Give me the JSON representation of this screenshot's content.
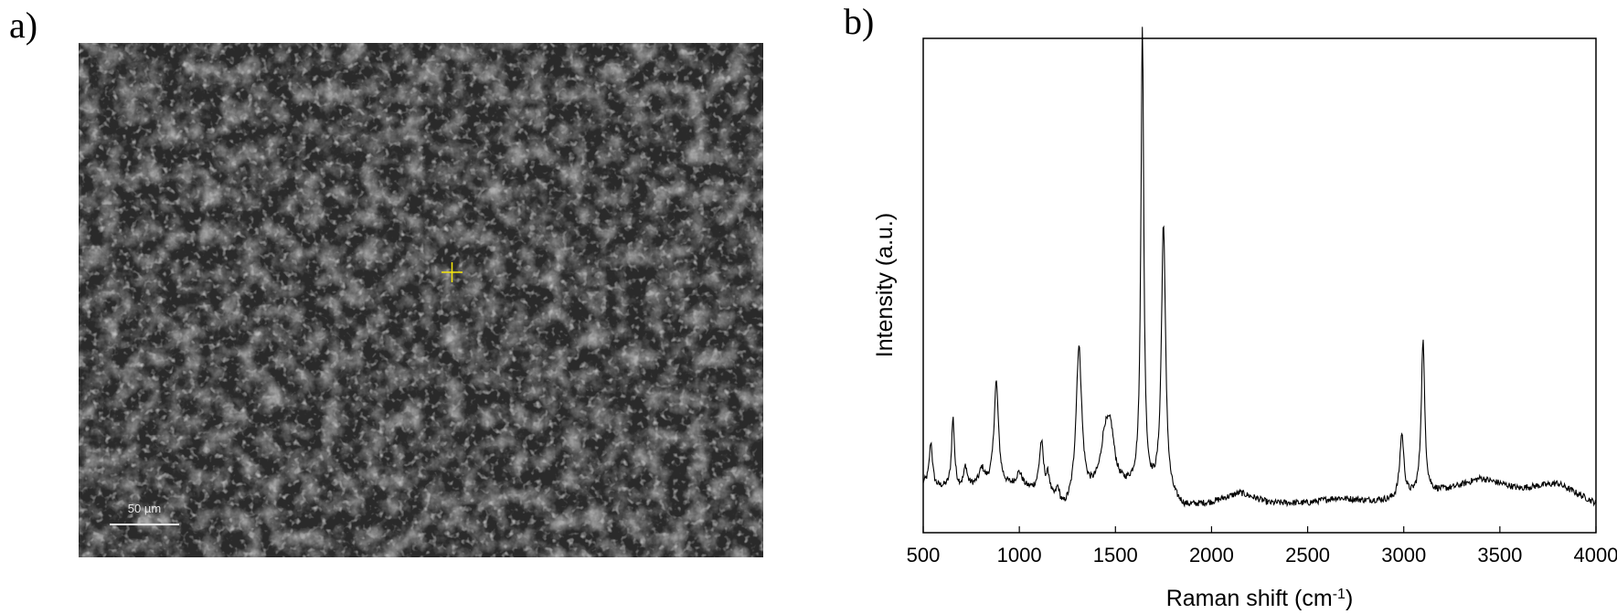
{
  "panels": {
    "a": {
      "label": "a)",
      "scale_bar": {
        "text": "50 µm",
        "color": "#e6e6e6"
      },
      "marker": {
        "icon": "crosshair-icon",
        "color": "#f5e60a"
      }
    },
    "b": {
      "label": "b)"
    }
  },
  "chart_data": {
    "type": "line",
    "title": "",
    "xlabel": "Raman shift (cm",
    "xlabel_sup": "-1",
    "xlabel_end": ")",
    "ylabel": "Intensity (a.u.)",
    "xlim": [
      500,
      4000
    ],
    "ylim": [
      0,
      100
    ],
    "xticks": [
      500,
      1000,
      1500,
      2000,
      2500,
      3000,
      3500,
      4000
    ],
    "grid": false,
    "legend": "none",
    "line_color": "#000000",
    "series": [
      {
        "baseline": [
          [
            500,
            10
          ],
          [
            550,
            9
          ],
          [
            700,
            9
          ],
          [
            800,
            9.5
          ],
          [
            950,
            9
          ],
          [
            1100,
            8
          ],
          [
            1230,
            4
          ],
          [
            1400,
            8
          ],
          [
            1600,
            9
          ],
          [
            1750,
            7
          ],
          [
            1860,
            5
          ],
          [
            2000,
            6
          ],
          [
            2150,
            8
          ],
          [
            2300,
            6
          ],
          [
            2500,
            6
          ],
          [
            2650,
            7
          ],
          [
            2800,
            6.5
          ],
          [
            2950,
            6.5
          ],
          [
            3250,
            9
          ],
          [
            3400,
            11
          ],
          [
            3600,
            9
          ],
          [
            3800,
            10
          ],
          [
            3900,
            8
          ],
          [
            4000,
            6
          ]
        ],
        "peaks": [
          {
            "x": 540,
            "h": 9,
            "w": 10
          },
          {
            "x": 655,
            "h": 14,
            "w": 9
          },
          {
            "x": 720,
            "h": 4,
            "w": 10
          },
          {
            "x": 805,
            "h": 3,
            "w": 15
          },
          {
            "x": 880,
            "h": 21,
            "w": 14
          },
          {
            "x": 1000,
            "h": 3,
            "w": 20
          },
          {
            "x": 1115,
            "h": 10,
            "w": 13
          },
          {
            "x": 1150,
            "h": 4,
            "w": 12
          },
          {
            "x": 1200,
            "h": 3,
            "w": 12
          },
          {
            "x": 1310,
            "h": 31,
            "w": 18
          },
          {
            "x": 1445,
            "h": 9,
            "w": 25
          },
          {
            "x": 1475,
            "h": 10,
            "w": 25
          },
          {
            "x": 1640,
            "h": 93,
            "w": 9
          },
          {
            "x": 1750,
            "h": 55,
            "w": 13
          },
          {
            "x": 2990,
            "h": 13,
            "w": 13
          },
          {
            "x": 3100,
            "h": 31,
            "w": 11
          }
        ]
      }
    ]
  }
}
